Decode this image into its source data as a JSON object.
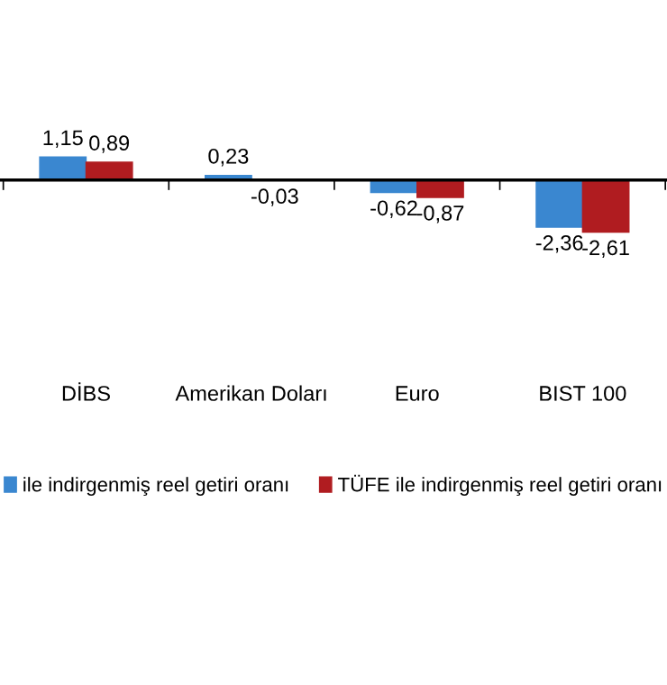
{
  "chart_data": {
    "type": "bar",
    "categories": [
      "DİBS",
      "Amerikan Doları",
      "Euro",
      "BIST 100"
    ],
    "series": [
      {
        "name": "ile indirgenmiş reel getiri oranı",
        "color": "#3a87d0",
        "values": [
          1.15,
          0.23,
          -0.62,
          -2.36
        ],
        "value_labels": [
          "1,15",
          "0,23",
          "-0,62",
          "-2,36"
        ]
      },
      {
        "name": "TÜFE ile indirgenmiş reel getiri oranı",
        "color": "#b01c20",
        "values": [
          0.89,
          -0.03,
          -0.87,
          -2.61
        ],
        "value_labels": [
          "0,89",
          "-0,03",
          "-0,87",
          "-2,61"
        ]
      }
    ],
    "legend": "bottom",
    "grid": false
  }
}
